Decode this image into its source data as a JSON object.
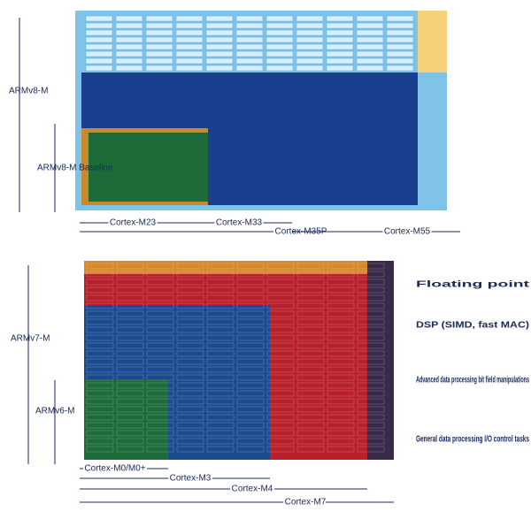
{
  "top": {
    "arch_labels": [
      "ARMv8-M",
      "ARMv8-M Baseline"
    ],
    "cores": [
      "Cortex-M23",
      "Cortex-M33",
      "Cortex-M35P",
      "Cortex-M55"
    ]
  },
  "bottom": {
    "arch_labels": [
      "ARMv7-M",
      "ARMv6-M"
    ],
    "features": [
      "Floating point",
      "DSP (SIMD, fast MAC)",
      "Advanced data processing bit field manipulations",
      "General data processing I/O control tasks"
    ],
    "cores": [
      "Cortex-M0/M0+",
      "Cortex-M3",
      "Cortex-M4",
      "Cortex-M7"
    ]
  }
}
